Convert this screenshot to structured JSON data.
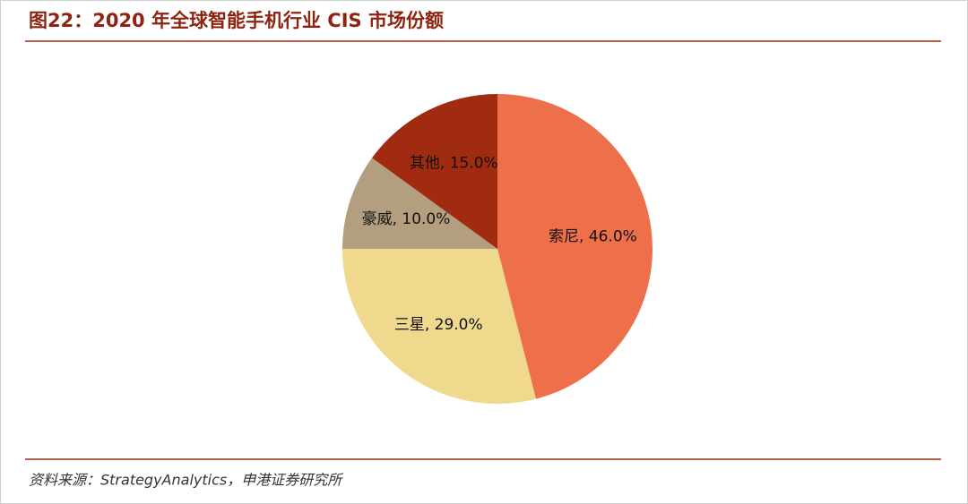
{
  "header": {
    "title": "图22：2020 年全球智能手机行业 CIS 市场份额"
  },
  "chart_data": {
    "type": "pie",
    "labels": [
      "索尼, 46.0%",
      "三星, 29.0%",
      "豪威, 10.0%",
      "其他, 15.0%"
    ],
    "values": [
      46,
      29,
      10,
      15
    ],
    "colors": [
      "#ED704B",
      "#EFD98C",
      "#B39E80",
      "#A12B10"
    ]
  },
  "footer": {
    "source": "资料来源：StrategyAnalytics，申港证券研究所"
  }
}
